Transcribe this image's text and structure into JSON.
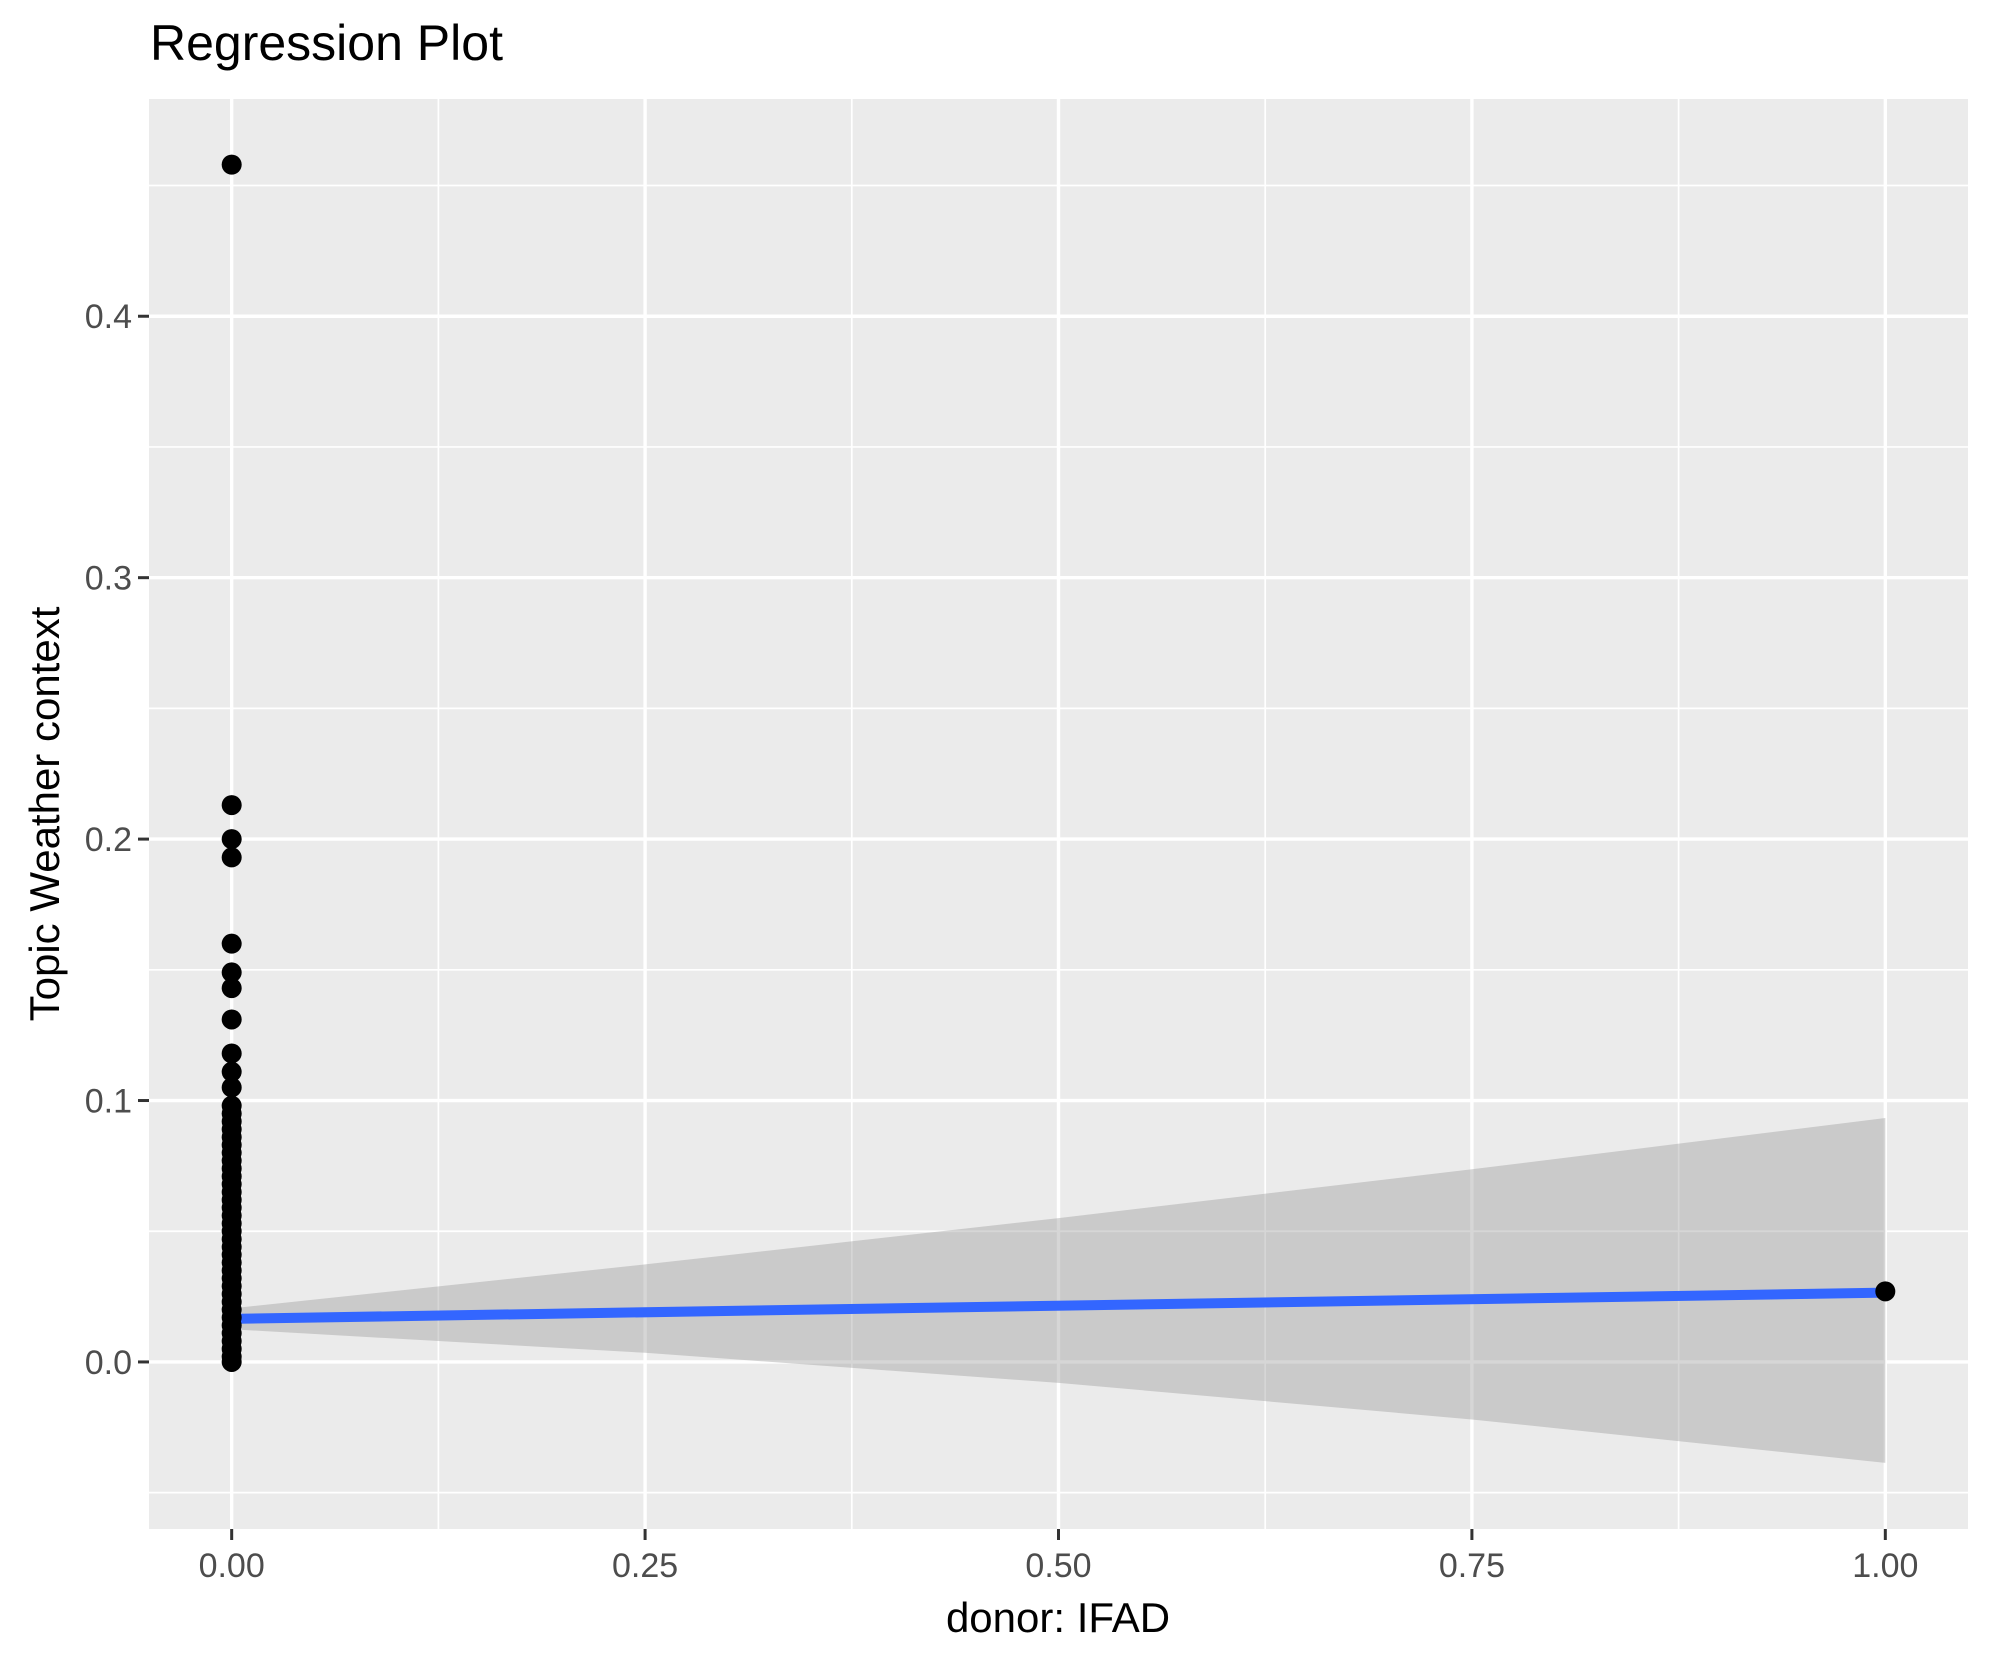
{
  "title": "Regression Plot",
  "chart_data": {
    "type": "scatter",
    "title": "Regression Plot",
    "xlabel": "donor: IFAD",
    "ylabel": "Topic Weather context",
    "xlim": [
      -0.05,
      1.05
    ],
    "ylim": [
      -0.0639,
      0.4831
    ],
    "grid": true,
    "legend_position": "none",
    "x_major_ticks": [
      0.0,
      0.25,
      0.5,
      0.75,
      1.0
    ],
    "x_tick_labels": [
      "0.00",
      "0.25",
      "0.50",
      "0.75",
      "1.00"
    ],
    "x_minor_ticks": [
      0.125,
      0.375,
      0.625,
      0.875
    ],
    "y_major_ticks": [
      0.0,
      0.1,
      0.2,
      0.3,
      0.4
    ],
    "y_tick_labels": [
      "0.0",
      "0.1",
      "0.2",
      "0.3",
      "0.4"
    ],
    "y_minor_ticks": [
      -0.05,
      0.05,
      0.15,
      0.25,
      0.35,
      0.45
    ],
    "points": [
      {
        "x": 0.0,
        "y": [
          0.458,
          0.213,
          0.2,
          0.193,
          0.16,
          0.149,
          0.143,
          0.131,
          0.118,
          0.111,
          0.105,
          0.098,
          0.095,
          0.092,
          0.089,
          0.086,
          0.083,
          0.08,
          0.077,
          0.074,
          0.071,
          0.068,
          0.065,
          0.062,
          0.059,
          0.056,
          0.053,
          0.05,
          0.047,
          0.044,
          0.041,
          0.038,
          0.035,
          0.032,
          0.029,
          0.026,
          0.023,
          0.02,
          0.017,
          0.014,
          0.011,
          0.008,
          0.005,
          0.002,
          0.0
        ]
      },
      {
        "x": 1.0,
        "y": [
          0.027
        ]
      }
    ],
    "regression_line": {
      "x": [
        0.0,
        1.0
      ],
      "y": [
        0.0165,
        0.0265
      ]
    },
    "confidence_band": {
      "upper": [
        [
          0.0,
          0.0205
        ],
        [
          0.25,
          0.0373
        ],
        [
          0.5,
          0.055
        ],
        [
          0.75,
          0.0737
        ],
        [
          1.0,
          0.0933
        ]
      ],
      "lower": [
        [
          0.0,
          0.0125
        ],
        [
          0.25,
          0.0035
        ],
        [
          0.5,
          -0.008
        ],
        [
          0.75,
          -0.022
        ],
        [
          1.0,
          -0.0386
        ]
      ]
    }
  },
  "colors": {
    "panel_background": "#EBEBEB",
    "grid_major": "#FFFFFF",
    "grid_minor": "#FFFFFF",
    "point": "#000000",
    "regression_line": "#3366FF",
    "confidence_band": "rgba(153,153,153,0.4)",
    "tick_label": "#4D4D4D",
    "tick_mark": "#333333",
    "text": "#000000"
  }
}
